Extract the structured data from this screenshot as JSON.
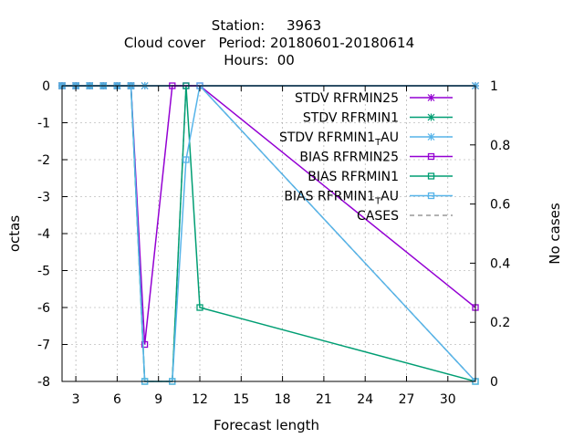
{
  "chart_data": {
    "type": "line",
    "title_lines": [
      "Station:     3963",
      "Cloud cover   Period: 20180601-20180614",
      "Hours:  00"
    ],
    "xlabel": "Forecast length",
    "ylabel": "octas",
    "y2label": "No cases",
    "xlim": [
      2,
      32
    ],
    "ylim": [
      -8,
      0
    ],
    "y2lim": [
      0,
      1
    ],
    "xticks": [
      3,
      6,
      9,
      12,
      15,
      18,
      21,
      24,
      27,
      30
    ],
    "yticks": [
      0,
      -1,
      -2,
      -3,
      -4,
      -5,
      -6,
      -7,
      -8
    ],
    "y2ticks": [
      1,
      0.8,
      0.6,
      0.4,
      0.2,
      0
    ],
    "grid": true,
    "legend_position": "top-right",
    "series": [
      {
        "name": "STDV RFRMIN25",
        "axis": "y2",
        "color": "#9400d3",
        "marker": "x",
        "x": [
          2,
          3,
          4,
          5,
          6,
          7,
          8,
          32
        ],
        "y": [
          1,
          1,
          1,
          1,
          1,
          1,
          1,
          1
        ]
      },
      {
        "name": "STDV RFRMIN1",
        "axis": "y2",
        "color": "#009e73",
        "marker": "x",
        "x": [
          2,
          3,
          4,
          5,
          6,
          7,
          8,
          32
        ],
        "y": [
          1,
          1,
          1,
          1,
          1,
          1,
          1,
          1
        ]
      },
      {
        "name": "STDV RFRMIN1",
        "name_sub": "T",
        "name_tail": "AU",
        "axis": "y2",
        "color": "#56b4e9",
        "marker": "x",
        "x": [
          2,
          3,
          4,
          5,
          6,
          7,
          8,
          32
        ],
        "y": [
          1,
          1,
          1,
          1,
          1,
          1,
          1,
          1
        ]
      },
      {
        "name": "BIAS RFRMIN25",
        "axis": "y",
        "color": "#9400d3",
        "marker": "square",
        "x": [
          2,
          3,
          4,
          5,
          6,
          7,
          8,
          10,
          11,
          12,
          32
        ],
        "y": [
          0,
          0,
          0,
          0,
          0,
          0,
          -7,
          0,
          0,
          0,
          -6
        ]
      },
      {
        "name": "BIAS RFRMIN1",
        "axis": "y",
        "color": "#009e73",
        "marker": "square",
        "x": [
          2,
          3,
          4,
          5,
          6,
          7,
          8,
          10,
          11,
          12,
          32
        ],
        "y": [
          0,
          0,
          0,
          0,
          0,
          0,
          -8,
          -8,
          0,
          -6,
          -8
        ]
      },
      {
        "name": "BIAS RFRMIN1",
        "name_sub": "T",
        "name_tail": "AU",
        "axis": "y",
        "color": "#56b4e9",
        "marker": "square",
        "x": [
          2,
          3,
          4,
          5,
          6,
          7,
          8,
          10,
          11,
          12,
          32
        ],
        "y": [
          0,
          0,
          0,
          0,
          0,
          0,
          -8,
          -8,
          -2,
          0,
          -8
        ]
      },
      {
        "name": "CASES",
        "axis": "y2",
        "color": "#999999",
        "marker": "none",
        "dashed": true,
        "x": [
          2,
          3,
          4,
          5,
          6,
          7,
          8,
          10,
          11,
          12,
          32
        ],
        "y": [
          1,
          1,
          1,
          1,
          1,
          1,
          0,
          0,
          1,
          1,
          0
        ]
      }
    ]
  }
}
